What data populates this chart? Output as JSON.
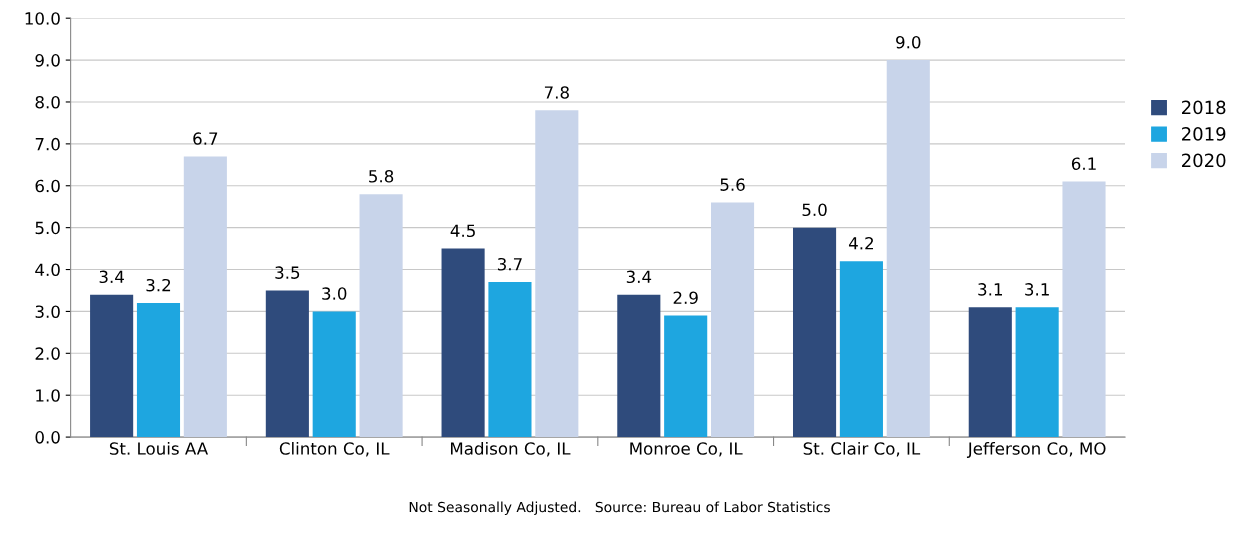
{
  "chart_data": {
    "type": "bar",
    "categories": [
      "St. Louis AA",
      "Clinton Co, IL",
      "Madison Co, IL",
      "Monroe Co, IL",
      "St. Clair Co, IL",
      "Jefferson Co, MO"
    ],
    "series": [
      {
        "name": "2018",
        "color": "#2f4b7c",
        "values": [
          3.4,
          3.5,
          4.5,
          3.4,
          5.0,
          3.1
        ]
      },
      {
        "name": "2019",
        "color": "#1ea6e0",
        "values": [
          3.2,
          3.0,
          3.7,
          2.9,
          4.2,
          3.1
        ]
      },
      {
        "name": "2020",
        "color": "#c8d4ea",
        "values": [
          6.7,
          5.8,
          7.8,
          5.6,
          9.0,
          6.1
        ]
      }
    ],
    "ylim": [
      0,
      10
    ],
    "yticks": [
      {
        "value": 0,
        "label": "0.0"
      },
      {
        "value": 1,
        "label": "1.0"
      },
      {
        "value": 2,
        "label": "2.0"
      },
      {
        "value": 3,
        "label": "3.0"
      },
      {
        "value": 4,
        "label": "4.0"
      },
      {
        "value": 5,
        "label": "5.0"
      },
      {
        "value": 6,
        "label": "6.0"
      },
      {
        "value": 7,
        "label": "7.0"
      },
      {
        "value": 8,
        "label": "8.0"
      },
      {
        "value": 9,
        "label": "9.0"
      },
      {
        "value": 10,
        "label": "10.0"
      }
    ],
    "value_labels": [
      [
        "3.4",
        "3.5",
        "4.5",
        "3.4",
        "5.0",
        "3.1"
      ],
      [
        "3.2",
        "3.0",
        "3.7",
        "2.9",
        "4.2",
        "3.1"
      ],
      [
        "6.7",
        "5.8",
        "7.8",
        "5.6",
        "9.0",
        "6.1"
      ]
    ],
    "grid": "y",
    "legend": "right",
    "annotations": [
      "Not Seasonally Adjusted.   Source: Bureau of Labor Statistics"
    ]
  }
}
